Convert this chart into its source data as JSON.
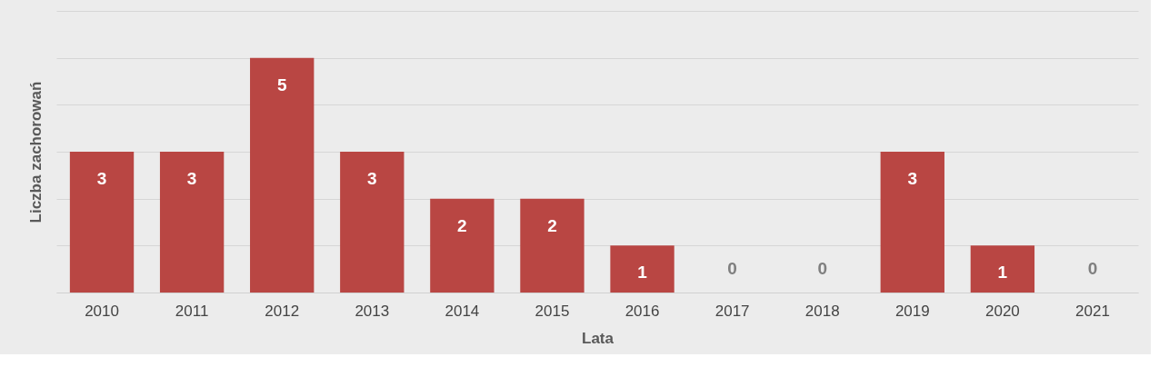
{
  "chart_data": {
    "type": "bar",
    "xlabel": "Lata",
    "ylabel": "Liczba zachorowań",
    "categories": [
      "2010",
      "2011",
      "2012",
      "2013",
      "2014",
      "2015",
      "2016",
      "2017",
      "2018",
      "2019",
      "2020",
      "2021"
    ],
    "values": [
      3,
      3,
      5,
      3,
      2,
      2,
      1,
      0,
      0,
      3,
      1,
      0
    ],
    "color": "#b94643",
    "ylim": [
      0,
      6
    ],
    "yticks": [
      {
        "value": 0,
        "label": null
      },
      {
        "value": 1,
        "label": null
      },
      {
        "value": 2,
        "label": null
      },
      {
        "value": 3,
        "label": null
      },
      {
        "value": 4,
        "label": null
      },
      {
        "value": 5,
        "label": null
      },
      {
        "value": 6,
        "label": null
      }
    ],
    "tick_labels": "x",
    "grid": "y",
    "data_labels": true
  }
}
